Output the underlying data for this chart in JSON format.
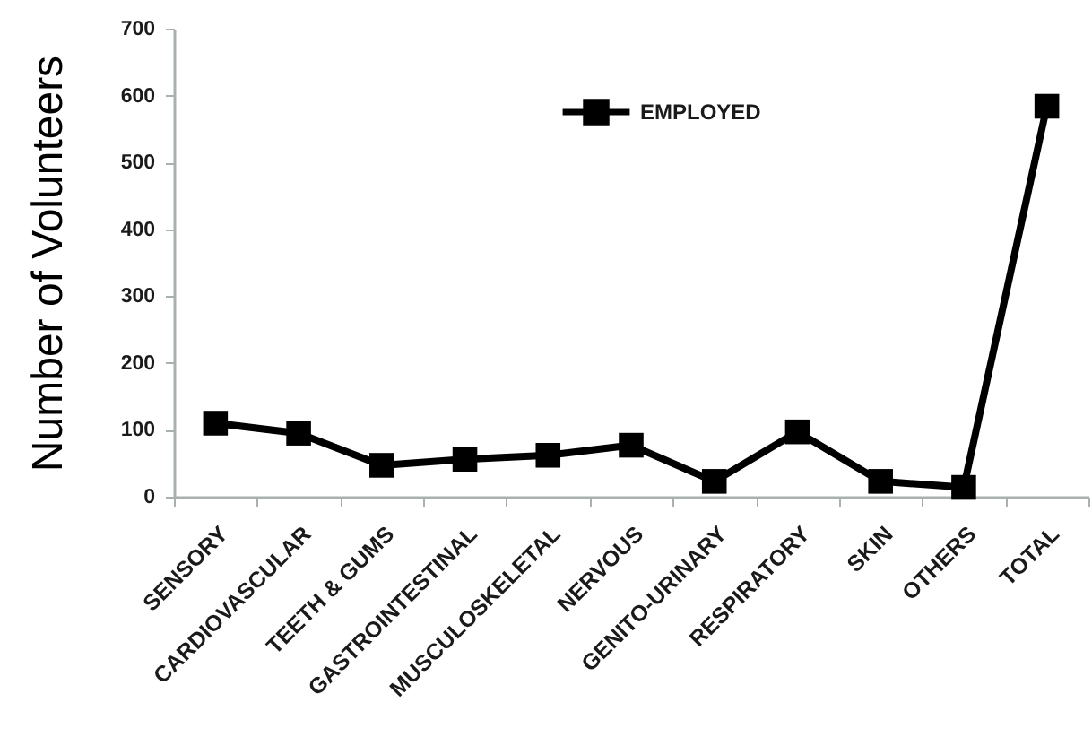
{
  "chart_data": {
    "type": "line",
    "ylabel": "Number of Volunteers",
    "categories": [
      "SENSORY",
      "CARDIOVASCULAR",
      "TEETH & GUMS",
      "GASTROINTESTINAL",
      "MUSCULOSKELETAL",
      "NERVOUS",
      "GENITO-URINARY",
      "RESPIRATORY",
      "SKIN",
      "OTHERS",
      "TOTAL"
    ],
    "series": [
      {
        "name": "EMPLOYED",
        "color": "#000000",
        "values": [
          110,
          95,
          47,
          56,
          62,
          77,
          23,
          97,
          23,
          14,
          584
        ]
      }
    ],
    "ylim": [
      0,
      700
    ],
    "yticks": [
      0,
      100,
      200,
      300,
      400,
      500,
      600,
      700
    ],
    "grid": false,
    "legend": "top",
    "marker": "square"
  }
}
